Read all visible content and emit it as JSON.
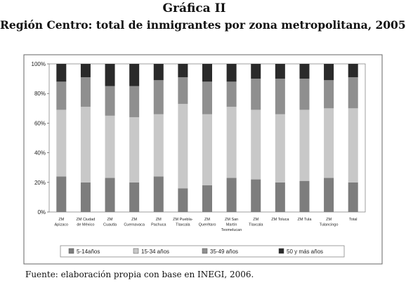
{
  "header": {
    "title": "Gráfica II",
    "subtitle": "Región Centro: total de inmigrantes por zona metropolitana, 2005"
  },
  "source": "Fuente: elaboración propia con base en INEGI, 2006.",
  "chart_data": {
    "type": "bar",
    "stacked": true,
    "percent": true,
    "categories": [
      [
        "ZM",
        "Apizaco"
      ],
      [
        "ZM Ciudad",
        "de México"
      ],
      [
        "ZM",
        "Cuautla"
      ],
      [
        "ZM",
        "Cuernavaca"
      ],
      [
        "ZM",
        "Pachuca"
      ],
      [
        "ZM Puebla-",
        "Tlaxcala"
      ],
      [
        "ZM",
        "Querétaro"
      ],
      [
        "ZM San",
        "Martín",
        "Texmelucan"
      ],
      [
        "ZM",
        "Tlaxcala"
      ],
      [
        "ZM Toluca"
      ],
      [
        "ZM Tula"
      ],
      [
        "ZM",
        "Tulancingo"
      ],
      [
        "Total"
      ]
    ],
    "series": [
      {
        "name": "5-14años",
        "color": "#7d7d7d",
        "values": [
          24,
          20,
          23,
          20,
          24,
          16,
          18,
          23,
          22,
          20,
          21,
          23,
          20
        ]
      },
      {
        "name": "15-34 años",
        "color": "#c8c8c8",
        "values": [
          45,
          51,
          42,
          44,
          42,
          57,
          48,
          48,
          47,
          46,
          48,
          47,
          50
        ]
      },
      {
        "name": "35-49 años",
        "color": "#8f8f8f",
        "values": [
          19,
          20,
          20,
          21,
          23,
          18,
          22,
          17,
          21,
          24,
          21,
          19,
          21
        ]
      },
      {
        "name": "50 y más años",
        "color": "#2a2a2a",
        "values": [
          12,
          9,
          15,
          15,
          11,
          9,
          12,
          12,
          10,
          10,
          10,
          11,
          9
        ]
      }
    ],
    "yticks": [
      "0%",
      "20%",
      "40%",
      "60%",
      "80%",
      "100%"
    ],
    "ylim": [
      0,
      100
    ],
    "legend_position": "bottom"
  }
}
